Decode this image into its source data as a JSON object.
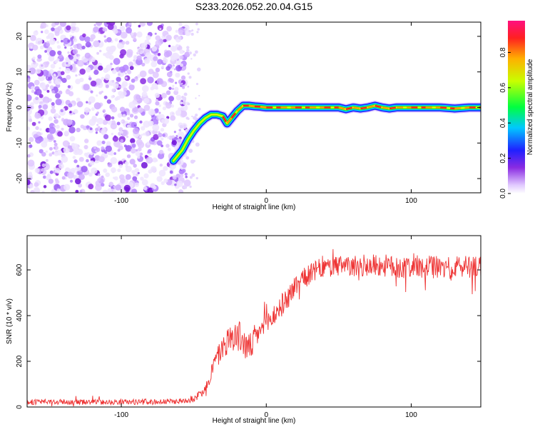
{
  "chart_data": [
    {
      "type": "heatmap",
      "title": "S233.2026.052.20.04.G15",
      "xlabel": "Height of straight line (km)",
      "ylabel": "Frequency (Hz)",
      "xlim": [
        -165,
        148
      ],
      "ylim": [
        -24,
        24
      ],
      "xticks": [
        -100,
        0,
        100
      ],
      "yticks": [
        20,
        10,
        0,
        -10,
        -20
      ],
      "colorbar": {
        "label": "Normalized spectral amplitude",
        "range": [
          0,
          0.98
        ],
        "ticks": [
          0.0,
          0.2,
          0.4,
          0.6,
          0.8
        ]
      },
      "noise_region_x": [
        -165,
        -60
      ],
      "ridge_x": [
        -64,
        -58,
        -54,
        -50,
        -46,
        -42,
        -38,
        -34,
        -30,
        -27,
        -24,
        -20,
        -16,
        -12,
        -8,
        -4,
        0,
        10,
        20,
        30,
        40,
        50,
        55,
        60,
        65,
        70,
        75,
        80,
        85,
        90,
        100,
        110,
        120,
        130,
        140,
        148
      ],
      "ridge_freq": [
        -15,
        -12,
        -9,
        -6.5,
        -4.5,
        -3,
        -2,
        -2,
        -2.5,
        -4.5,
        -3,
        -1,
        0.5,
        0.5,
        0.3,
        0.2,
        0,
        0,
        0,
        0,
        0,
        0,
        -0.5,
        0,
        -0.3,
        0,
        0.5,
        0,
        -0.3,
        0,
        0,
        0,
        0,
        -0.3,
        0,
        0
      ]
    },
    {
      "type": "line",
      "xlabel": "Height of straight line (km)",
      "ylabel": "SNR (10 * v/v)",
      "xlim": [
        -165,
        148
      ],
      "ylim": [
        0,
        750
      ],
      "xticks": [
        -100,
        0,
        100
      ],
      "yticks": [
        0,
        200,
        400,
        600
      ],
      "series": [
        {
          "name": "SNR",
          "color": "#ee3333",
          "x": [
            -165,
            -120,
            -80,
            -60,
            -50,
            -45,
            -40,
            -36,
            -32,
            -28,
            -25,
            -22,
            -20,
            -18,
            -15,
            -12,
            -10,
            -5,
            0,
            5,
            10,
            15,
            20,
            25,
            30,
            35,
            40,
            50,
            60,
            70,
            80,
            90,
            100,
            110,
            120,
            130,
            140,
            148
          ],
          "mean": [
            22,
            22,
            22,
            25,
            35,
            60,
            110,
            190,
            240,
            280,
            300,
            320,
            300,
            310,
            270,
            260,
            270,
            330,
            360,
            400,
            440,
            480,
            530,
            560,
            580,
            600,
            610,
            615,
            615,
            620,
            620,
            610,
            615,
            615,
            610,
            610,
            620,
            615
          ],
          "amp": [
            12,
            12,
            12,
            12,
            14,
            20,
            30,
            40,
            50,
            60,
            60,
            70,
            70,
            70,
            70,
            60,
            60,
            50,
            50,
            50,
            50,
            50,
            50,
            45,
            45,
            45,
            45,
            45,
            45,
            50,
            50,
            50,
            50,
            50,
            50,
            50,
            55,
            55
          ]
        }
      ]
    }
  ]
}
